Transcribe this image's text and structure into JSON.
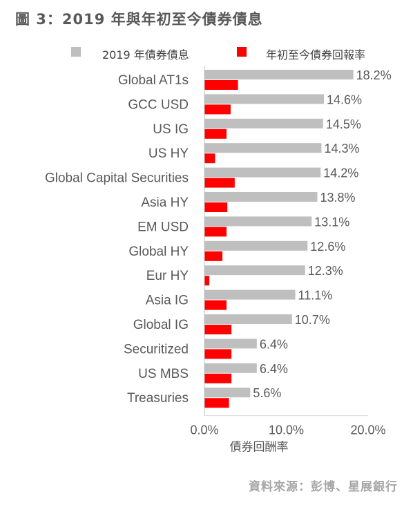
{
  "title": "圖 3：2019 年與年初至今債券債息",
  "source": "資料來源：彭博、星展銀行",
  "colors": {
    "yield": "#bfbfbf",
    "ytd": "#ff0000",
    "text": "#595959"
  },
  "chart_data": {
    "type": "bar",
    "orientation": "horizontal",
    "categories": [
      "Global AT1s",
      "GCC USD",
      "US IG",
      "US HY",
      "Global Capital Securities",
      "Asia HY",
      "EM USD",
      "Global HY",
      "Eur HY",
      "Asia IG",
      "Global IG",
      "Securitized",
      "US MBS",
      "Treasuries"
    ],
    "series": [
      {
        "name": "2019 年債券債息",
        "color": "#bfbfbf",
        "values": [
          18.2,
          14.6,
          14.5,
          14.3,
          14.2,
          13.8,
          13.1,
          12.6,
          12.3,
          11.1,
          10.7,
          6.4,
          6.4,
          5.6
        ],
        "labels": [
          "18.2%",
          "14.6%",
          "14.5%",
          "14.3%",
          "14.2%",
          "13.8%",
          "13.1%",
          "12.6%",
          "12.3%",
          "11.1%",
          "10.7%",
          "6.4%",
          "6.4%",
          "5.6%"
        ]
      },
      {
        "name": "年初至今債券回報率",
        "color": "#ff0000",
        "values": [
          4.1,
          3.2,
          2.7,
          1.3,
          3.7,
          2.8,
          2.7,
          2.2,
          0.6,
          2.7,
          3.3,
          3.3,
          3.3,
          3.0
        ]
      }
    ],
    "xlabel": "債券回酬率",
    "xlim": [
      0,
      20
    ],
    "xticks": [
      "0.0%",
      "10.0%",
      "20.0%"
    ],
    "grid": false,
    "legend": "top"
  }
}
